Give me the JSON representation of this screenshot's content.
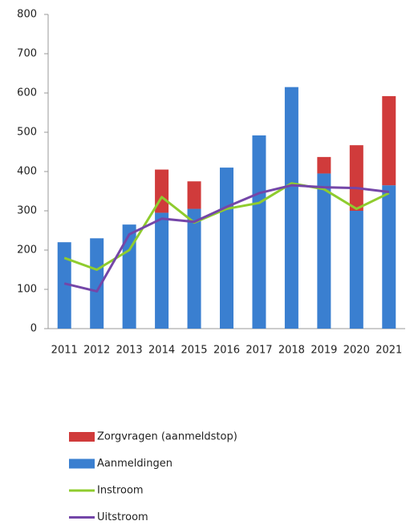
{
  "chart_data": {
    "type": "bar-line",
    "categories": [
      "2011",
      "2012",
      "2013",
      "2014",
      "2015",
      "2016",
      "2017",
      "2018",
      "2019",
      "2020",
      "2021"
    ],
    "series": [
      {
        "name": "Zorgvragen (aanmeldstop)",
        "color": "#d03b3b",
        "kind": "bar",
        "values": [
          0,
          0,
          0,
          110,
          70,
          0,
          0,
          0,
          42,
          167,
          227
        ]
      },
      {
        "name": "Aanmeldingen",
        "color": "#3a7fd0",
        "kind": "bar",
        "values": [
          220,
          230,
          265,
          295,
          305,
          410,
          492,
          615,
          395,
          300,
          365
        ]
      },
      {
        "name": "Instroom",
        "color": "#8fcc2e",
        "kind": "line",
        "values": [
          180,
          150,
          200,
          335,
          270,
          305,
          320,
          370,
          355,
          305,
          345
        ]
      },
      {
        "name": "Uitstroom",
        "color": "#7446a8",
        "kind": "line",
        "values": [
          115,
          95,
          240,
          280,
          272,
          310,
          345,
          365,
          360,
          358,
          348
        ]
      }
    ],
    "ylim": [
      0,
      800
    ],
    "yticks": [
      0,
      100,
      200,
      300,
      400,
      500,
      600,
      700,
      800
    ],
    "grid": false,
    "legend": "bottom"
  }
}
